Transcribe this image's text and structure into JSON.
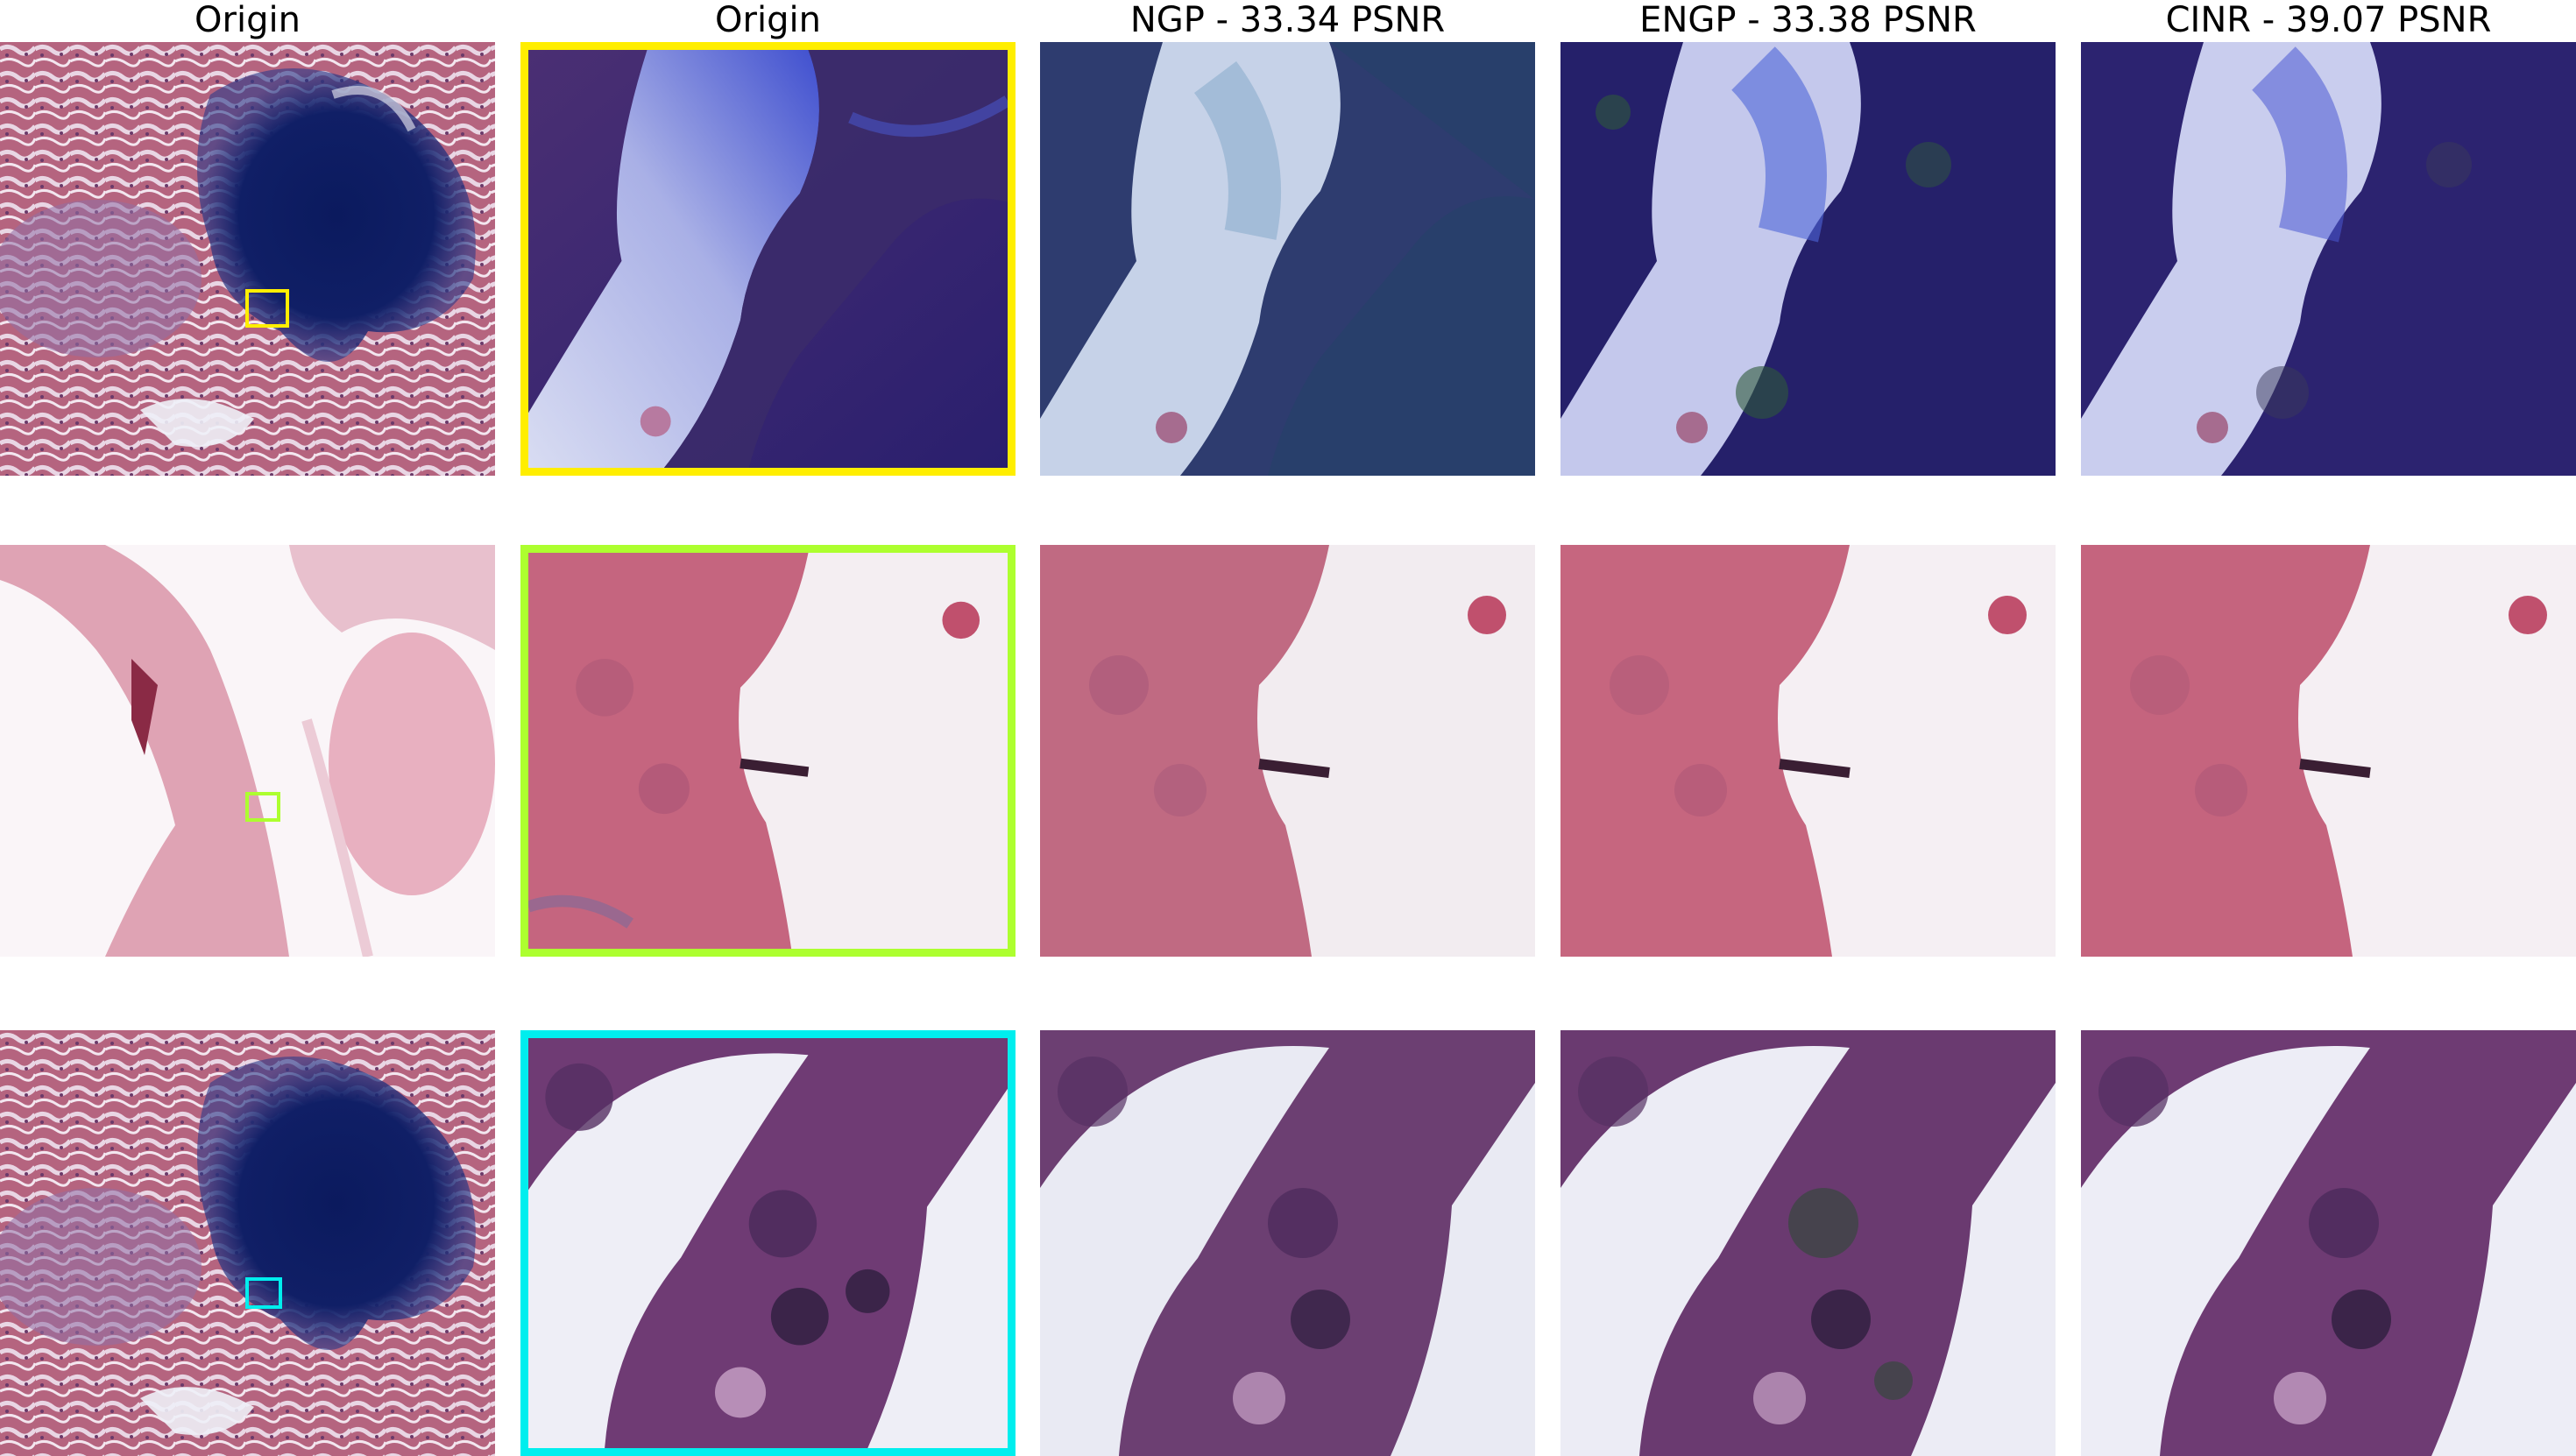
{
  "column_titles": [
    "Origin",
    "Origin",
    "NGP - 33.34 PSNR",
    "ENGP - 33.38 PSNR",
    "CINR - 39.07 PSNR"
  ],
  "highlight_colors": {
    "row1": "#ffee00",
    "row2": "#adff2f",
    "row3": "#00eeee"
  },
  "row_themes": [
    "dark-blue stain",
    "pink tissue",
    "purple cells"
  ]
}
